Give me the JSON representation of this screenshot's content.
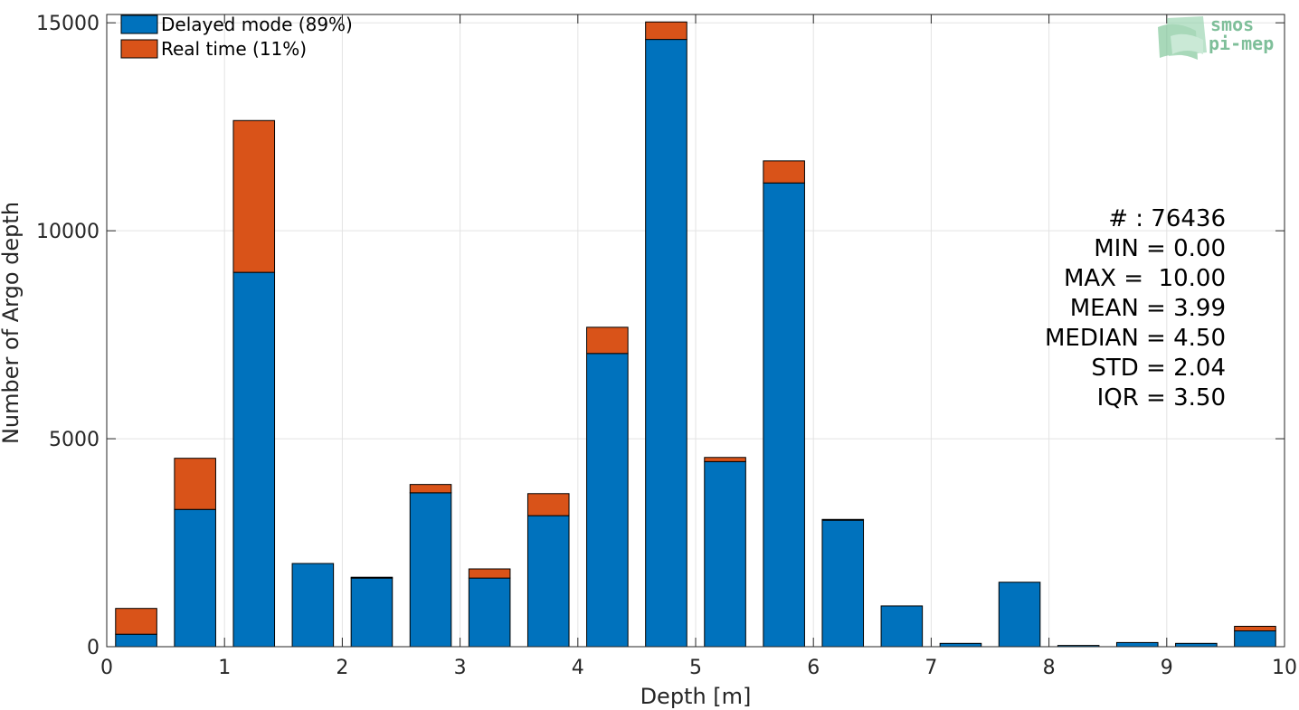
{
  "chart_data": {
    "type": "bar",
    "stacked": true,
    "xlabel": "Depth [m]",
    "ylabel": "Number of Argo depth",
    "xlim": [
      0,
      10
    ],
    "ylim": [
      0,
      15200
    ],
    "xticks": [
      "0",
      "1",
      "2",
      "3",
      "4",
      "5",
      "6",
      "7",
      "8",
      "9",
      "10"
    ],
    "yticks": [
      0,
      5000,
      10000,
      15000
    ],
    "ytick_labels": [
      "0",
      "5000",
      "10000",
      "15000"
    ],
    "grid": true,
    "legend_position": "top-left",
    "bin_centers": [
      0.25,
      0.75,
      1.25,
      1.75,
      2.25,
      2.75,
      3.25,
      3.75,
      4.25,
      4.75,
      5.25,
      5.75,
      6.25,
      6.75,
      7.25,
      7.75,
      8.25,
      8.75,
      9.25,
      9.75
    ],
    "series": [
      {
        "name": "Delayed mode (89%)",
        "color": "#0072BD",
        "values": [
          300,
          3300,
          9000,
          2000,
          1650,
          3700,
          1650,
          3150,
          7050,
          14600,
          4450,
          11150,
          3050,
          980,
          80,
          1550,
          30,
          100,
          80,
          380
        ]
      },
      {
        "name": "Real time (11%)",
        "color": "#D95319",
        "values": [
          620,
          1230,
          3650,
          0,
          20,
          200,
          220,
          530,
          630,
          420,
          100,
          530,
          10,
          0,
          0,
          0,
          0,
          0,
          0,
          110
        ]
      }
    ],
    "annotations": [
      "# : 76436",
      "MIN = 0.00",
      "MAX =  10.00",
      "MEAN = 3.99",
      "MEDIAN = 4.50",
      "STD = 2.04",
      "IQR = 3.50"
    ]
  },
  "logo": {
    "line1": "smos",
    "line2": "pi-mep"
  }
}
